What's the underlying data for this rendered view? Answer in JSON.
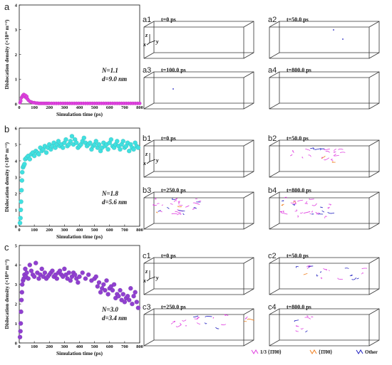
{
  "chart_data": [
    {
      "type": "scatter",
      "panel_label": "a",
      "xlabel": "Simulation time (ps)",
      "ylabel": "Dislocation density (×10¹⁶ m⁻²)",
      "xlim": [
        0,
        800
      ],
      "ylim": [
        0,
        4
      ],
      "xticks": [
        0,
        100,
        200,
        300,
        400,
        500,
        600,
        700,
        800
      ],
      "yticks": [
        0,
        1,
        2,
        3,
        4
      ],
      "color": "#e040e0",
      "annotation": [
        "N=1.1",
        "d=9.0 nm"
      ],
      "x": [
        5,
        10,
        15,
        20,
        25,
        30,
        35,
        40,
        45,
        50,
        55,
        60,
        70,
        80,
        90,
        100,
        110,
        120,
        130,
        140,
        150,
        160,
        170,
        180,
        190,
        200,
        215,
        230,
        245,
        260,
        275,
        290,
        305,
        320,
        335,
        350,
        365,
        380,
        395,
        410,
        425,
        440,
        455,
        470,
        485,
        500,
        515,
        530,
        545,
        560,
        575,
        590,
        605,
        620,
        635,
        650,
        665,
        680,
        695,
        710,
        725,
        740,
        755,
        770,
        785,
        800
      ],
      "y": [
        0.05,
        0.12,
        0.25,
        0.3,
        0.35,
        0.38,
        0.3,
        0.35,
        0.25,
        0.3,
        0.2,
        0.15,
        0.1,
        0.08,
        0.05,
        0.05,
        0.03,
        0.03,
        0.02,
        0.02,
        0.02,
        0.02,
        0.02,
        0.02,
        0.02,
        0.02,
        0.02,
        0.02,
        0.02,
        0.02,
        0.02,
        0.02,
        0.02,
        0.02,
        0.02,
        0.02,
        0.02,
        0.02,
        0.02,
        0.02,
        0.02,
        0.02,
        0.02,
        0.02,
        0.02,
        0.02,
        0.02,
        0.02,
        0.02,
        0.02,
        0.02,
        0.02,
        0.02,
        0.02,
        0.02,
        0.02,
        0.02,
        0.02,
        0.02,
        0.02,
        0.02,
        0.02,
        0.02,
        0.02,
        0.02,
        0.02
      ]
    },
    {
      "type": "scatter",
      "panel_label": "b",
      "xlabel": "Simulation time (ps)",
      "ylabel": "Dislocation density (×10¹⁶ m⁻²)",
      "xlim": [
        0,
        800
      ],
      "ylim": [
        0,
        6
      ],
      "xticks": [
        0,
        100,
        200,
        300,
        400,
        500,
        600,
        700,
        800
      ],
      "yticks": [
        0,
        1,
        2,
        3,
        4,
        5,
        6
      ],
      "color": "#40e0e0",
      "annotation": [
        "N=1.8",
        "d=5.6 nm"
      ],
      "x": [
        5,
        8,
        10,
        12,
        15,
        18,
        20,
        25,
        30,
        35,
        40,
        50,
        60,
        70,
        80,
        90,
        100,
        110,
        120,
        130,
        140,
        150,
        160,
        170,
        180,
        190,
        200,
        210,
        220,
        230,
        240,
        250,
        260,
        270,
        280,
        290,
        300,
        310,
        320,
        330,
        340,
        350,
        360,
        370,
        380,
        390,
        400,
        410,
        420,
        430,
        440,
        450,
        460,
        470,
        480,
        490,
        500,
        510,
        520,
        530,
        540,
        550,
        560,
        570,
        580,
        590,
        600,
        610,
        620,
        630,
        640,
        650,
        660,
        670,
        680,
        690,
        700,
        710,
        720,
        730,
        740,
        750,
        760,
        770,
        780,
        790
      ],
      "y": [
        0.2,
        0.5,
        1.0,
        1.5,
        2.2,
        2.8,
        3.3,
        3.6,
        3.7,
        3.8,
        4.1,
        4.2,
        4.3,
        4.1,
        4.4,
        4.5,
        4.3,
        4.6,
        4.5,
        4.4,
        4.8,
        4.6,
        4.7,
        4.9,
        4.5,
        4.8,
        5.0,
        4.7,
        4.9,
        5.1,
        4.8,
        5.0,
        5.2,
        4.9,
        5.0,
        4.8,
        5.1,
        5.3,
        4.9,
        5.0,
        5.2,
        5.5,
        5.0,
        5.3,
        5.1,
        4.8,
        4.9,
        5.0,
        5.2,
        5.4,
        5.1,
        4.9,
        5.0,
        5.1,
        4.7,
        4.9,
        5.0,
        5.2,
        4.8,
        5.0,
        4.6,
        4.8,
        5.1,
        4.9,
        5.0,
        4.7,
        5.1,
        5.3,
        4.9,
        4.8,
        5.0,
        5.2,
        4.9,
        4.7,
        5.0,
        5.2,
        4.8,
        4.9,
        5.1,
        4.6,
        5.0,
        4.8,
        4.7,
        5.1,
        4.9,
        4.8
      ]
    },
    {
      "type": "scatter",
      "panel_label": "c",
      "xlabel": "Simulation time (ps)",
      "ylabel": "Dislocation density (×10¹⁶ m⁻²)",
      "xlim": [
        0,
        800
      ],
      "ylim": [
        0,
        5
      ],
      "xticks": [
        0,
        100,
        200,
        300,
        400,
        500,
        600,
        700,
        800
      ],
      "yticks": [
        0,
        1,
        2,
        3,
        4,
        5
      ],
      "color": "#9040d0",
      "annotation": [
        "N=3.0",
        "d=3.4 nm"
      ],
      "x": [
        5,
        8,
        10,
        12,
        15,
        18,
        20,
        25,
        30,
        35,
        40,
        45,
        50,
        60,
        70,
        80,
        90,
        100,
        110,
        120,
        130,
        140,
        150,
        160,
        170,
        180,
        190,
        200,
        210,
        220,
        230,
        240,
        250,
        260,
        270,
        280,
        290,
        300,
        310,
        320,
        330,
        340,
        350,
        360,
        370,
        380,
        390,
        400,
        420,
        440,
        460,
        480,
        500,
        510,
        520,
        530,
        540,
        550,
        560,
        570,
        580,
        590,
        600,
        610,
        620,
        630,
        640,
        650,
        660,
        670,
        680,
        690,
        700,
        710,
        720,
        730,
        740,
        750,
        760,
        770,
        780,
        790
      ],
      "y": [
        0.3,
        0.6,
        1.0,
        1.6,
        2.2,
        2.6,
        3.0,
        3.2,
        3.3,
        3.5,
        3.8,
        3.4,
        3.6,
        3.3,
        4.0,
        3.7,
        3.5,
        3.4,
        4.1,
        3.6,
        3.3,
        3.5,
        3.8,
        3.4,
        3.6,
        3.3,
        3.4,
        3.5,
        3.6,
        3.7,
        3.4,
        3.5,
        3.3,
        3.6,
        3.7,
        3.5,
        3.4,
        3.8,
        3.5,
        3.3,
        3.6,
        3.2,
        3.4,
        3.6,
        3.5,
        3.3,
        3.1,
        3.4,
        3.6,
        3.3,
        3.5,
        3.2,
        3.3,
        3.4,
        2.9,
        3.1,
        2.6,
        2.8,
        3.0,
        2.7,
        3.2,
        2.5,
        2.8,
        2.9,
        2.7,
        3.0,
        2.3,
        2.5,
        2.4,
        2.7,
        2.2,
        2.5,
        2.1,
        2.3,
        2.4,
        2.2,
        2.8,
        2.0,
        2.4,
        2.6,
        2.1,
        1.8
      ]
    }
  ],
  "snapshots": [
    {
      "label": "a1",
      "time": "t=0 ps"
    },
    {
      "label": "a2",
      "time": "t=50.0 ps"
    },
    {
      "label": "a3",
      "time": "t=100.0 ps"
    },
    {
      "label": "a4",
      "time": "t=800.0 ps"
    },
    {
      "label": "b1",
      "time": "t=0 ps"
    },
    {
      "label": "b2",
      "time": "t=50.0 ps"
    },
    {
      "label": "b3",
      "time": "t=250.0 ps"
    },
    {
      "label": "b4",
      "time": "t=800.0 ps"
    },
    {
      "label": "c1",
      "time": "t=0 ps"
    },
    {
      "label": "c2",
      "time": "t=50.0 ps"
    },
    {
      "label": "c3",
      "time": "t=250.0 ps"
    },
    {
      "label": "c4",
      "time": "t=800.0 ps"
    }
  ],
  "axes_triad": {
    "z": "z",
    "x": "x",
    "y": "y"
  },
  "colors": {
    "partial": "#e040e0",
    "prismatic": "#f08020",
    "other": "#2020c0",
    "axis": "#111111",
    "box": "#333333"
  },
  "legend": [
    {
      "label": "1/3 ⟨1̄1̄00⟩",
      "color": "#e040e0"
    },
    {
      "label": "⟨1̄1̄00⟩",
      "color": "#f08020"
    },
    {
      "label": "Other",
      "color": "#2020c0"
    }
  ]
}
